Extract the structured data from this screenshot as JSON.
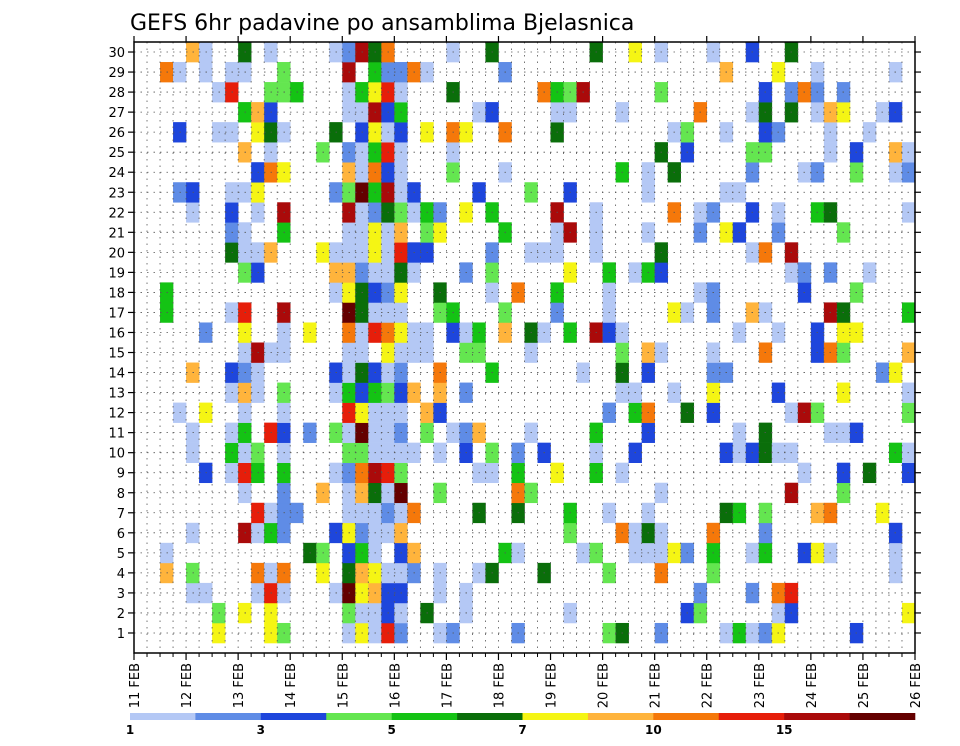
{
  "chart_data": {
    "type": "heatmap",
    "title": "GEFS 6hr padavine po ansamblima Bjelasnica",
    "xlabel": "",
    "ylabel": "",
    "y_members": [
      1,
      2,
      3,
      4,
      5,
      6,
      7,
      8,
      9,
      10,
      11,
      12,
      13,
      14,
      15,
      16,
      17,
      18,
      19,
      20,
      21,
      22,
      23,
      24,
      25,
      26,
      27,
      28,
      29,
      30
    ],
    "x_ticks": [
      "11 FEB",
      "12 FEB",
      "13 FEB",
      "14 FEB",
      "15 FEB",
      "16 FEB",
      "17 FEB",
      "18 FEB",
      "19 FEB",
      "20 FEB",
      "21 FEB",
      "22 FEB",
      "23 FEB",
      "24 FEB",
      "25 FEB",
      "26 FEB"
    ],
    "steps_per_day": 4,
    "legend": {
      "thresholds": [
        "1",
        "2",
        "3",
        "4",
        "5",
        "6",
        "7",
        "8",
        "10",
        "12",
        "15",
        "20"
      ],
      "colors": [
        "#b4c8f5",
        "#5f8ce6",
        "#1e46dc",
        "#64e650",
        "#14c314",
        "#0a6e0a",
        "#f5f514",
        "#ffb43c",
        "#f5780a",
        "#e61e0a",
        "#aa0a0a",
        "#640000"
      ]
    },
    "cells": {
      "30": [
        [
          0,
          27,
          0
        ],
        [
          0,
          28,
          0
        ],
        [
          0,
          29,
          0
        ],
        [
          0,
          30,
          0
        ],
        [
          0,
          31,
          0
        ],
        [
          0,
          32,
          0
        ],
        [
          0,
          33,
          0
        ],
        [
          0,
          34,
          0
        ],
        [
          0,
          35,
          0
        ],
        [
          0,
          36,
          0
        ],
        [
          0,
          37,
          0
        ],
        [
          0,
          38,
          0
        ],
        [
          0,
          39,
          0
        ],
        [
          0,
          40,
          0
        ],
        [
          0,
          41,
          0
        ],
        [
          0,
          42,
          0
        ],
        [
          0,
          43,
          0
        ],
        [
          0,
          44,
          0
        ],
        [
          0,
          45,
          0
        ],
        [
          0,
          46,
          0
        ],
        [
          0,
          47,
          0
        ],
        [
          0,
          48,
          0
        ],
        [
          0,
          49,
          0
        ],
        [
          0,
          50,
          0
        ],
        [
          0,
          51,
          0
        ],
        [
          0,
          52,
          0
        ],
        [
          0,
          53,
          0
        ],
        [
          0,
          54,
          0
        ],
        [
          0,
          55,
          0
        ],
        [
          0,
          56,
          0
        ],
        [
          0,
          57,
          0
        ]
      ],
      "_comment": "each entry: [colorIndex, step, unused]"
    }
  }
}
